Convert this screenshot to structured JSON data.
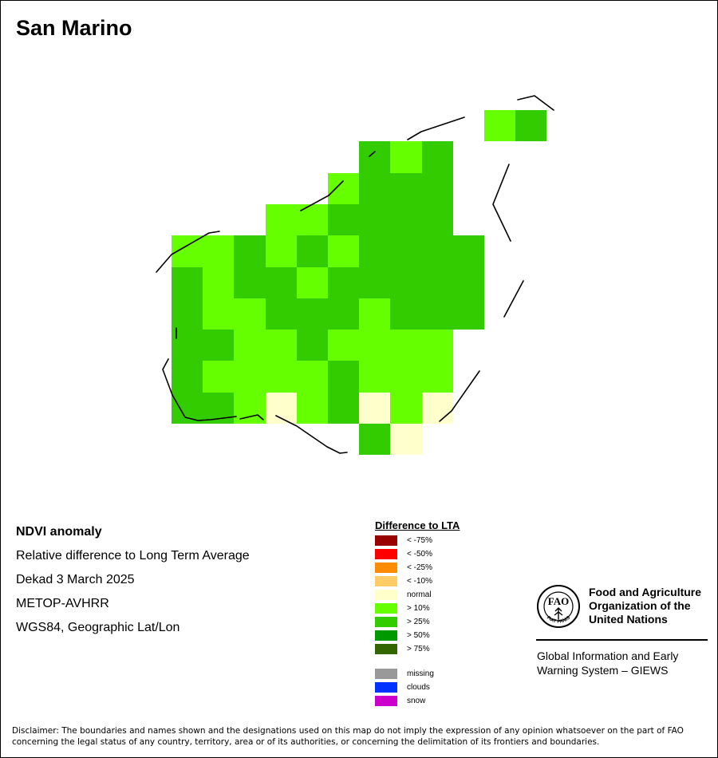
{
  "title": "San Marino",
  "info": {
    "line1": "NDVI anomaly",
    "line2": "Relative difference to Long Term Average",
    "line3": "Dekad 3 March 2025",
    "line4": "METOP-AVHRR",
    "line5": "WGS84, Geographic Lat/Lon"
  },
  "legend": {
    "title": "Difference to LTA",
    "classes": [
      {
        "label": "< -75%",
        "color": "#990000"
      },
      {
        "label": "< -50%",
        "color": "#ff0000"
      },
      {
        "label": "< -25%",
        "color": "#ff8c00"
      },
      {
        "label": "< -10%",
        "color": "#ffcc66"
      },
      {
        "label": "normal",
        "color": "#ffffcc"
      },
      {
        "label": "> 10%",
        "color": "#66ff00"
      },
      {
        "label": "> 25%",
        "color": "#33cc00"
      },
      {
        "label": "> 50%",
        "color": "#009900"
      },
      {
        "label": "> 75%",
        "color": "#336600"
      }
    ],
    "extra": [
      {
        "label": "missing",
        "color": "#999999"
      },
      {
        "label": "clouds",
        "color": "#0033ff"
      },
      {
        "label": "snow",
        "color": "#cc00cc"
      }
    ]
  },
  "logo": {
    "org_line1": "Food and Agriculture",
    "org_line2": "Organization of the",
    "org_line3": "United Nations",
    "system_line1": "Global Information and Early",
    "system_line2": "Warning System – GIEWS",
    "seal_text": "FIAT PANIS"
  },
  "disclaimer": "Disclaimer: The boundaries and names shown and the designations used on this map do not imply the expression of any opinion whatsoever on the part of FAO concerning the legal status of any country, territory, area or of its authorities, or concerning the delimitation of its frontiers and boundaries.",
  "map": {
    "palette": {
      "n": "#ffffcc",
      "a": "#66ff00",
      "b": "#33cc00",
      "c": "#009900"
    },
    "grid": [
      "..........ab",
      "......bab...",
      ".....abbb...",
      "...aabbbb...",
      "aabababbbb..",
      "babbabbbbb..",
      "baabbbabbb..",
      "bbaabaaaa...",
      "baaaabaaa...",
      "bbanabnan...",
      "......bn...."
    ]
  }
}
